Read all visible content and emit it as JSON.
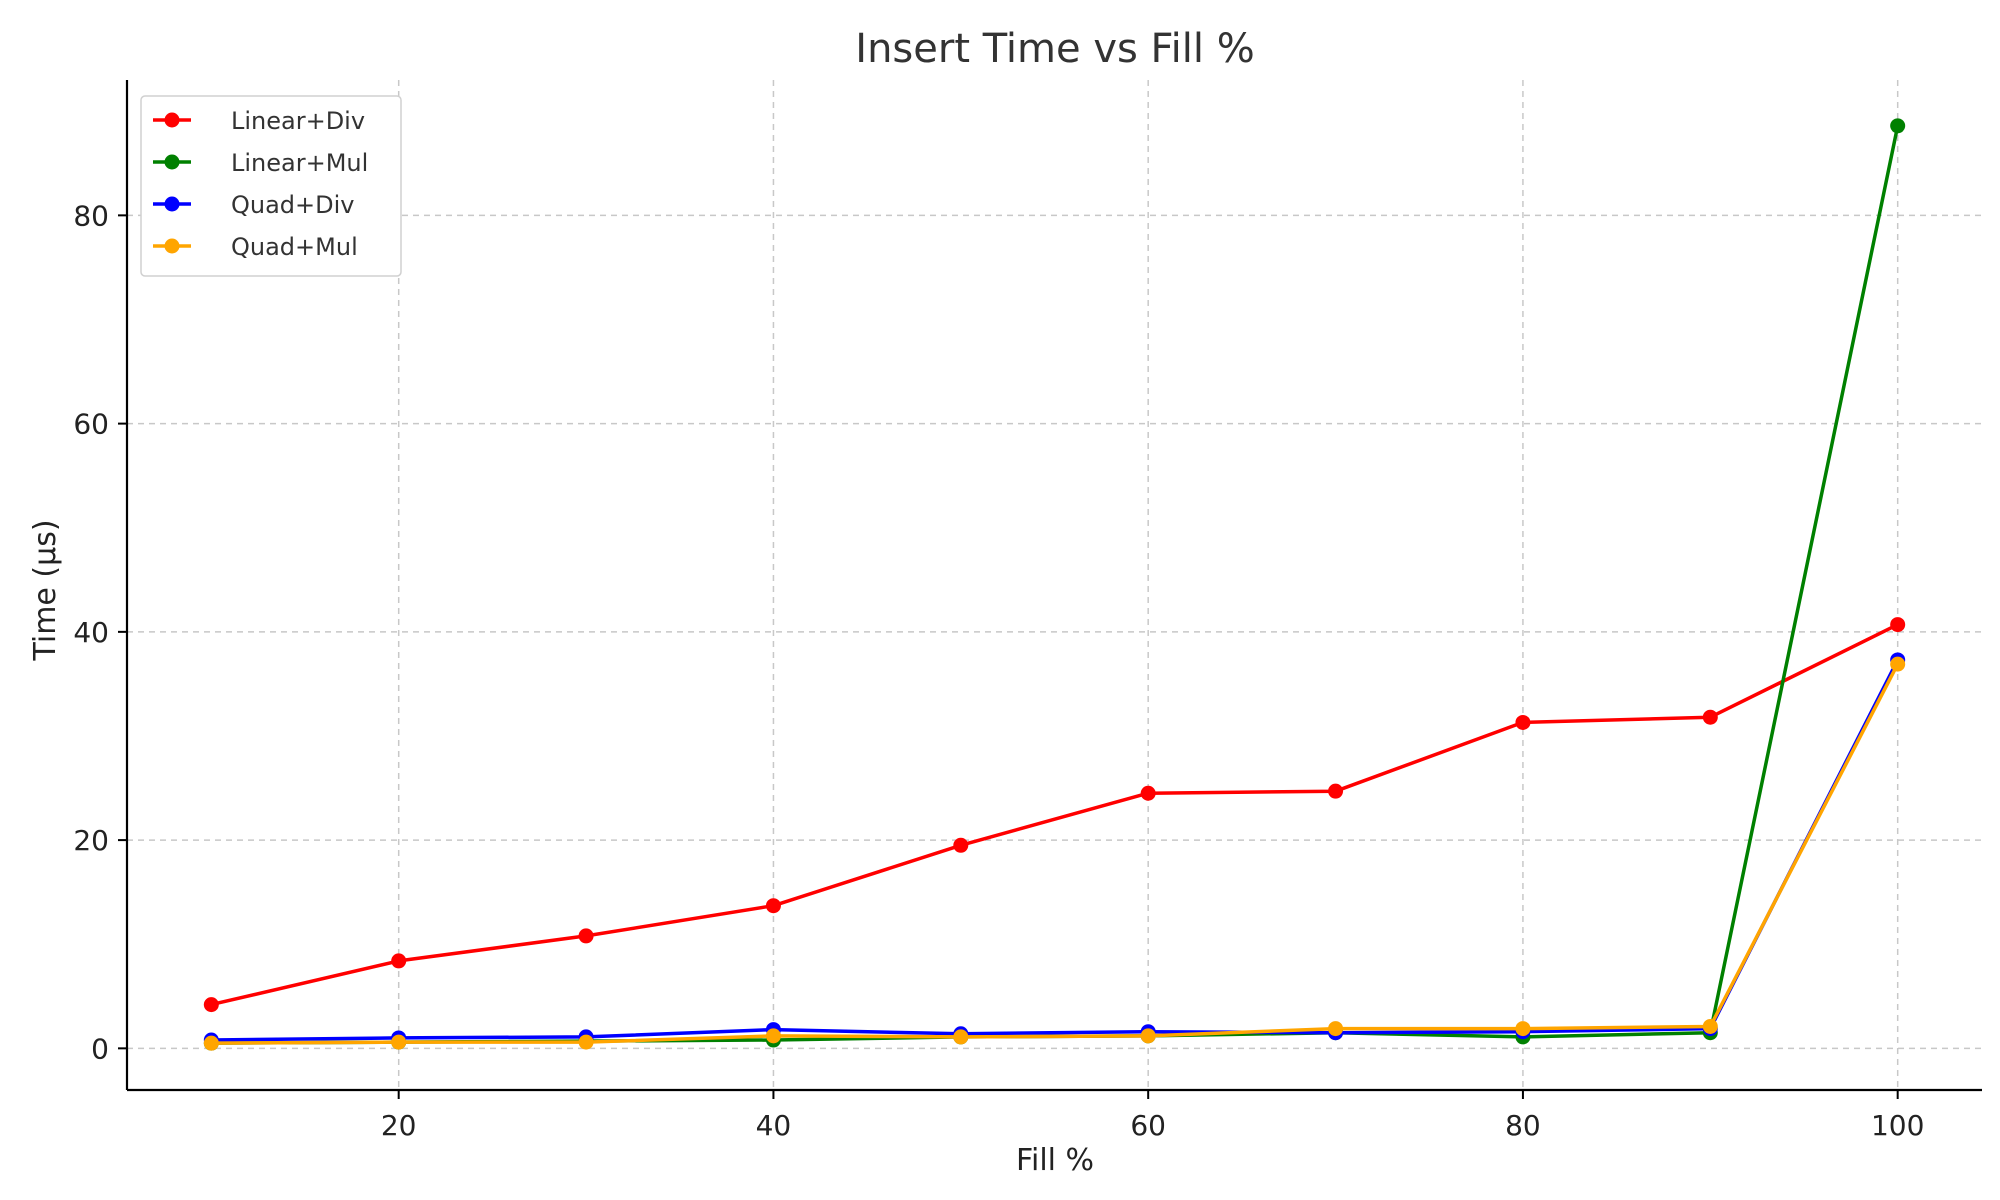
{
  "chart_data": {
    "type": "line",
    "title": "Insert Time vs Fill %",
    "xlabel": "Fill %",
    "ylabel": "Time (µs)",
    "x": [
      10,
      20,
      30,
      40,
      50,
      60,
      70,
      80,
      90,
      100
    ],
    "xlim": [
      5.5,
      104.5
    ],
    "ylim": [
      -4,
      93
    ],
    "xticks": [
      20,
      40,
      60,
      80,
      100
    ],
    "yticks": [
      0,
      20,
      40,
      60,
      80
    ],
    "grid": true,
    "legend_position": "top-left",
    "series": [
      {
        "name": "Linear+Div",
        "color": "#ff0000",
        "values": [
          4.2,
          8.4,
          10.8,
          13.7,
          19.5,
          24.5,
          24.7,
          31.3,
          31.8,
          40.7
        ]
      },
      {
        "name": "Linear+Mul",
        "color": "#008000",
        "values": [
          0.5,
          0.6,
          0.7,
          0.8,
          1.1,
          1.2,
          1.5,
          1.1,
          1.5,
          88.6
        ]
      },
      {
        "name": "Quad+Div",
        "color": "#0000ff",
        "values": [
          0.8,
          1.0,
          1.1,
          1.8,
          1.4,
          1.6,
          1.5,
          1.6,
          1.9,
          37.3
        ]
      },
      {
        "name": "Quad+Mul",
        "color": "#ffa500",
        "values": [
          0.5,
          0.6,
          0.6,
          1.2,
          1.1,
          1.2,
          1.9,
          1.9,
          2.1,
          36.9
        ]
      }
    ]
  }
}
